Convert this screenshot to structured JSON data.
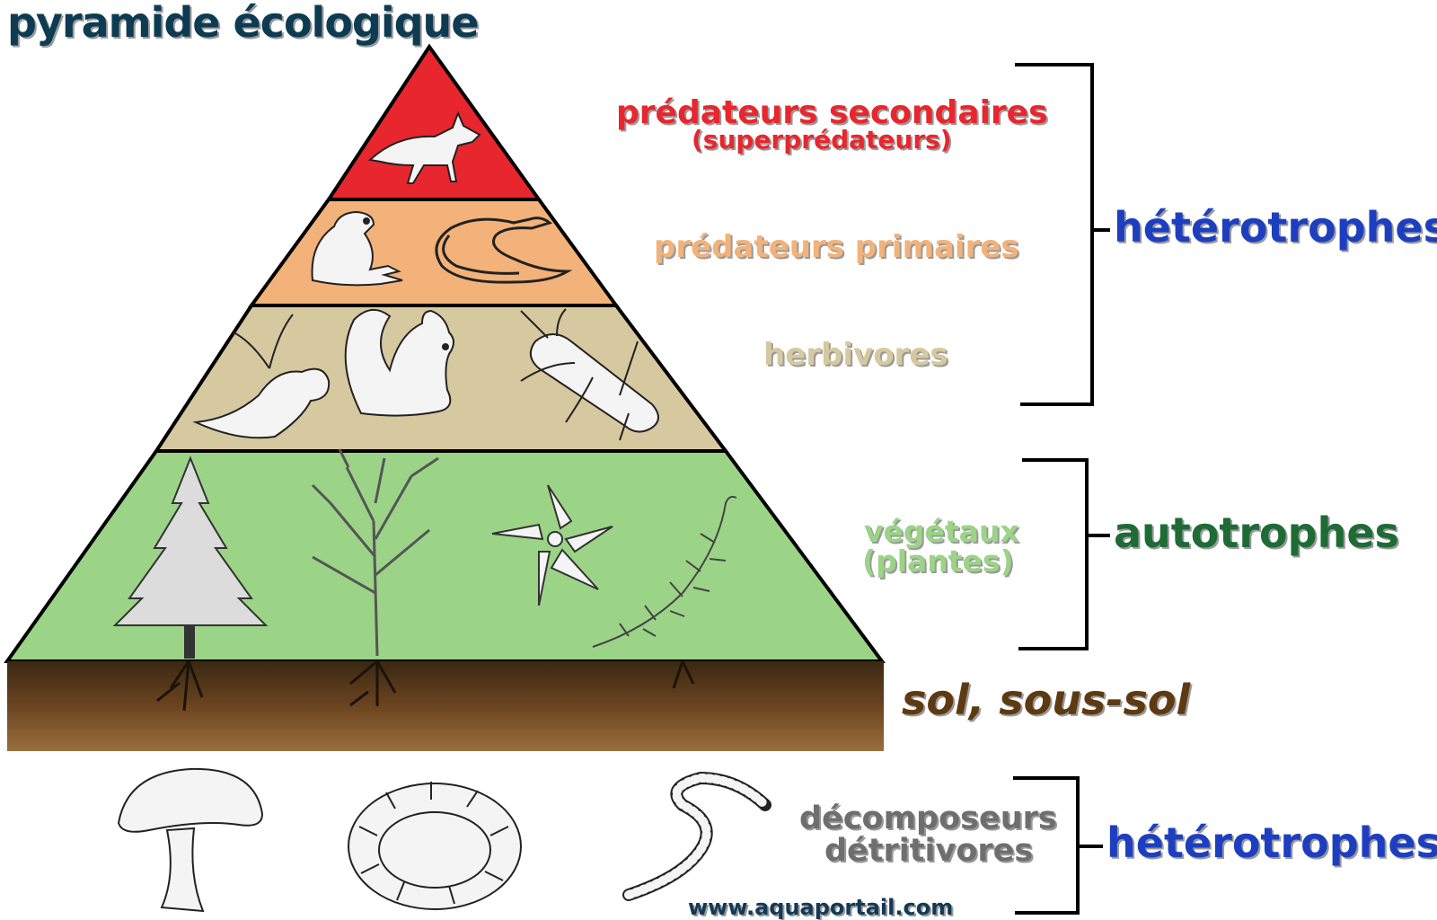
{
  "title": "pyramide écologique",
  "levels": [
    {
      "label": "prédateurs secondaires",
      "sublabel": "(superprédateurs)",
      "color": "#e8262d",
      "icons": [
        "fox-icon"
      ]
    },
    {
      "label": "prédateurs primaires",
      "color": "#f2b279",
      "icons": [
        "frog-icon",
        "snake-icon"
      ]
    },
    {
      "label": "herbivores",
      "color": "#d6c99f",
      "icons": [
        "rabbit-icon",
        "squirrel-icon",
        "beetle-icon"
      ]
    },
    {
      "label": "végétaux",
      "sublabel": "(plantes)",
      "color": "#9bd487",
      "icons": [
        "conifer-icon",
        "tree-icon",
        "flower-icon",
        "fern-icon"
      ]
    }
  ],
  "groups": {
    "heterotrophes_top": "hétérotrophes",
    "autotrophes": "autotrophes",
    "heterotrophes_bottom": "hétérotrophes"
  },
  "soil": {
    "label": "sol, sous-sol",
    "color": "#6b4420"
  },
  "decomposers": {
    "line1": "décomposeurs",
    "line2": "détritivores",
    "icons": [
      "mushroom-icon",
      "millipede-icon",
      "worm-icon"
    ]
  },
  "source": "www.aquaportail.com"
}
